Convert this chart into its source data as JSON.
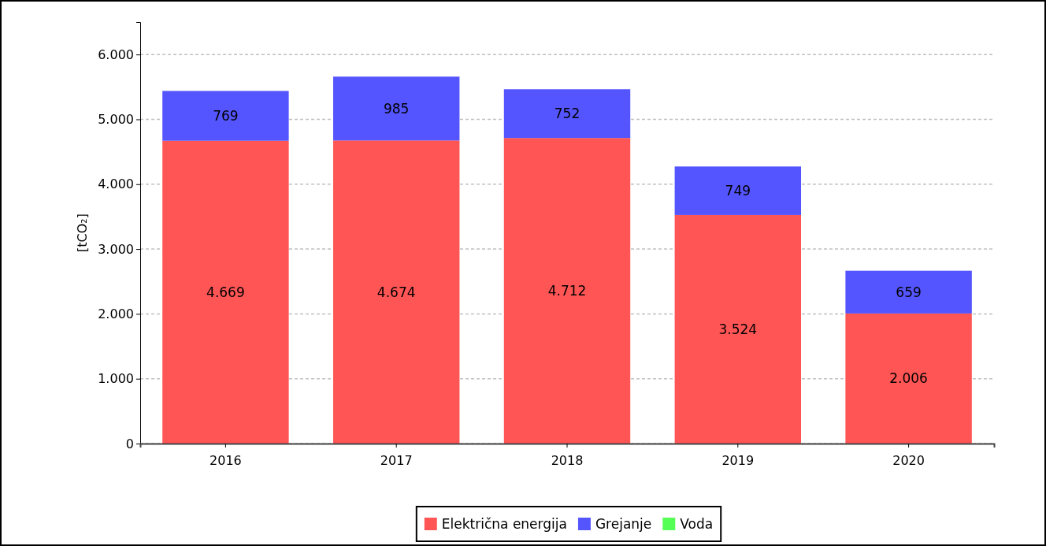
{
  "chart_data": {
    "type": "bar",
    "stacked": true,
    "ylabel": "[tCO₂]",
    "categories": [
      "2016",
      "2017",
      "2018",
      "2019",
      "2020"
    ],
    "series": [
      {
        "name": "Električna energija",
        "color": "#ff5555",
        "values": [
          4669,
          4674,
          4712,
          3524,
          2006
        ],
        "value_labels": [
          "4.669",
          "4.674",
          "4.712",
          "3.524",
          "2.006"
        ]
      },
      {
        "name": "Grejanje",
        "color": "#5555ff",
        "values": [
          769,
          985,
          752,
          749,
          659
        ],
        "value_labels": [
          "769",
          "985",
          "752",
          "749",
          "659"
        ]
      },
      {
        "name": "Voda",
        "color": "#55ff55",
        "values": [
          null,
          null,
          null,
          null,
          null
        ],
        "value_labels": [
          null,
          null,
          null,
          null,
          null
        ]
      }
    ],
    "ylim": [
      0,
      6500
    ],
    "yticks": [
      0,
      {
        "value": 1000,
        "label": "1.000"
      },
      {
        "value": 2000,
        "label": "2.000"
      },
      {
        "value": 3000,
        "label": "3.000"
      },
      {
        "value": 4000,
        "label": "4.000"
      },
      {
        "value": 5000,
        "label": "5.000"
      },
      {
        "value": 6000,
        "label": "6.000"
      }
    ],
    "grid": "y",
    "legend": "bottom"
  }
}
